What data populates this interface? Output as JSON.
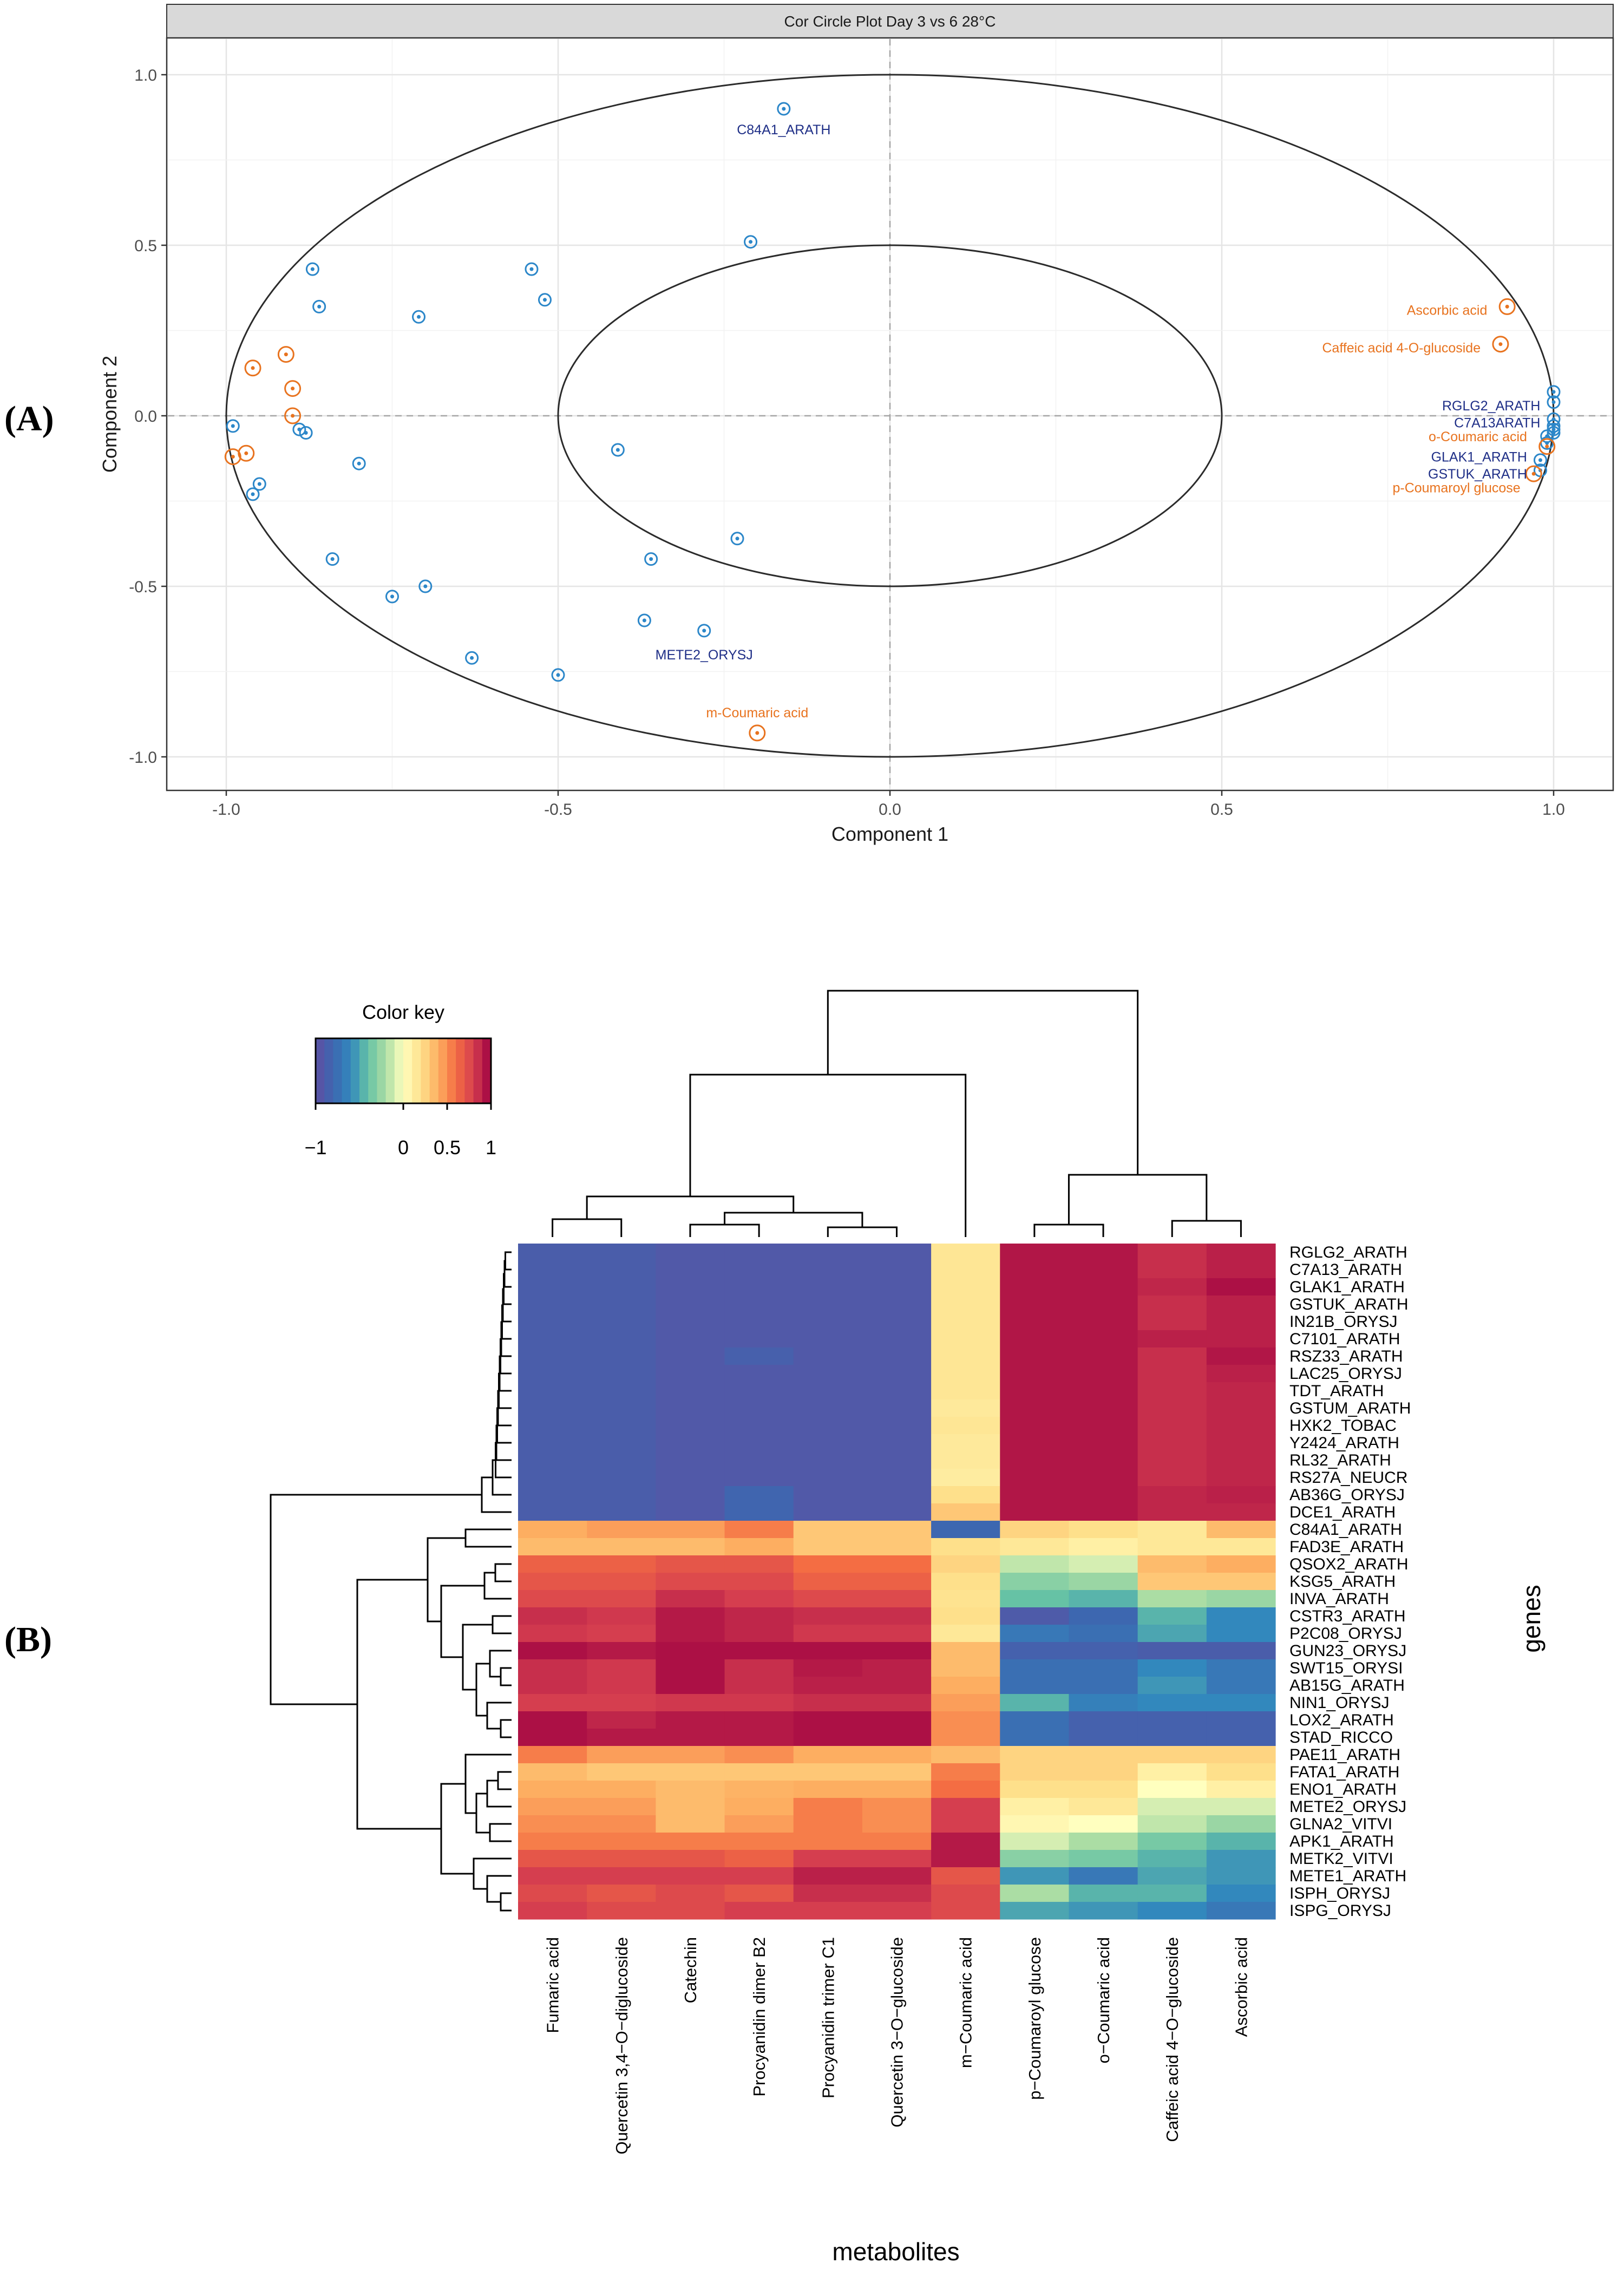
{
  "panels": {
    "a": "(A)",
    "b": "(B)"
  },
  "chart_data": [
    {
      "type": "scatter",
      "title": "Cor Circle Plot Day 3 vs 6 28°C",
      "xlabel": "Component  1",
      "ylabel": "Component  2",
      "xlim": [
        -1.0,
        1.0
      ],
      "ylim": [
        -1.0,
        1.0
      ],
      "xticks": [
        "-1.0",
        "-0.5",
        "0.0",
        "0.5",
        "1.0"
      ],
      "yticks": [
        "1.0",
        "0.5",
        "0.0",
        "-0.5",
        "-1.0"
      ],
      "circles": [
        1.0,
        0.5
      ],
      "grid": true,
      "colors": {
        "genes": "#2c87c9",
        "metabolites": "#e8731f",
        "gene_label": "#1f2f87",
        "metabolite_label": "#e8731f",
        "strip_bg": "#d9d9d9"
      },
      "series": [
        {
          "points": [
            [
              -0.16,
              0.9
            ],
            [
              -0.21,
              0.51
            ],
            [
              -0.54,
              0.43
            ],
            [
              -0.52,
              0.34
            ],
            [
              -0.87,
              0.43
            ],
            [
              -0.86,
              0.32
            ],
            [
              -0.71,
              0.29
            ],
            [
              -0.99,
              -0.03
            ],
            [
              -0.89,
              -0.04
            ],
            [
              -0.88,
              -0.05
            ],
            [
              -0.8,
              -0.14
            ],
            [
              -0.95,
              -0.2
            ],
            [
              -0.96,
              -0.23
            ],
            [
              -0.41,
              -0.1
            ],
            [
              -0.23,
              -0.36
            ],
            [
              -0.36,
              -0.42
            ],
            [
              -0.84,
              -0.42
            ],
            [
              -0.75,
              -0.53
            ],
            [
              -0.7,
              -0.5
            ],
            [
              -0.37,
              -0.6
            ],
            [
              -0.28,
              -0.63
            ],
            [
              -0.63,
              -0.71
            ],
            [
              -0.5,
              -0.76
            ],
            [
              1.0,
              0.07
            ],
            [
              1.0,
              0.04
            ],
            [
              1.0,
              -0.01
            ],
            [
              1.0,
              -0.03
            ],
            [
              1.0,
              -0.04
            ],
            [
              0.99,
              -0.06
            ],
            [
              0.99,
              -0.08
            ],
            [
              0.98,
              -0.13
            ],
            [
              0.98,
              -0.16
            ],
            [
              1.0,
              -0.05
            ]
          ]
        },
        {
          "points": [
            [
              0.93,
              0.32
            ],
            [
              0.92,
              0.21
            ],
            [
              0.99,
              -0.09
            ],
            [
              0.97,
              -0.17
            ],
            [
              -0.2,
              -0.93
            ],
            [
              -0.91,
              0.18
            ],
            [
              -0.96,
              0.14
            ],
            [
              -0.9,
              0.08
            ],
            [
              -0.9,
              0.0
            ],
            [
              -0.97,
              -0.11
            ],
            [
              -0.99,
              -0.12
            ]
          ]
        }
      ],
      "labels": [
        {
          "text": "C84A1_ARATH",
          "x": -0.16,
          "y": 0.84,
          "group": "gene",
          "anchor": "middle"
        },
        {
          "text": "METE2_ORYSJ",
          "x": -0.28,
          "y": -0.7,
          "group": "gene",
          "anchor": "middle"
        },
        {
          "text": "RGLG2_ARATH",
          "x": 0.98,
          "y": 0.03,
          "group": "gene",
          "anchor": "end"
        },
        {
          "text": "C7A13ARATH",
          "x": 0.98,
          "y": -0.02,
          "group": "gene",
          "anchor": "end"
        },
        {
          "text": "GLAK1_ARATH",
          "x": 0.96,
          "y": -0.12,
          "group": "gene",
          "anchor": "end"
        },
        {
          "text": "GSTUK_ARATH",
          "x": 0.96,
          "y": -0.17,
          "group": "gene",
          "anchor": "end"
        },
        {
          "text": "Ascorbic acid",
          "x": 0.9,
          "y": 0.31,
          "group": "metabolite",
          "anchor": "end"
        },
        {
          "text": "Caffeic acid 4-O-glucoside",
          "x": 0.89,
          "y": 0.2,
          "group": "metabolite",
          "anchor": "end"
        },
        {
          "text": "o-Coumaric acid",
          "x": 0.96,
          "y": -0.06,
          "group": "metabolite",
          "anchor": "end"
        },
        {
          "text": "p-Coumaroyl glucose",
          "x": 0.95,
          "y": -0.21,
          "group": "metabolite",
          "anchor": "end"
        },
        {
          "text": "m-Coumaric acid",
          "x": -0.2,
          "y": -0.87,
          "group": "metabolite",
          "anchor": "middle"
        }
      ]
    },
    {
      "type": "heatmap",
      "xlabel": "metabolites",
      "ylabel": "genes",
      "legend": {
        "title": "Color key",
        "ticks": [
          "−1",
          "0",
          "0.5",
          "1"
        ],
        "tick_values": [
          -1,
          0,
          0.5,
          1
        ],
        "range": [
          -1,
          1
        ]
      },
      "columns": [
        "Fumaric acid",
        "Quercetin 3,4−O−diglucoside",
        "Catechin",
        "Procyanidin dimer B2",
        "Procyanidin trimer C1",
        "Quercetin 3−O−glucoside",
        "m−Coumaric acid",
        "p−Coumaroyl glucose",
        "o−Coumaric acid",
        "Caffeic acid 4−O−glucoside",
        "Ascorbic acid"
      ],
      "rows": [
        "RGLG2_ARATH",
        "C7A13_ARATH",
        "GLAK1_ARATH",
        "GSTUK_ARATH",
        "IN21B_ORYSJ",
        "C7101_ARATH",
        "RSZ33_ARATH",
        "LAC25_ORYSJ",
        "TDT_ARATH",
        "GSTUM_ARATH",
        "HXK2_TOBAC",
        "Y2424_ARATH",
        "RL32_ARATH",
        "RS27A_NEUCR",
        "AB36G_ORYSJ",
        "DCE1_ARATH",
        "C84A1_ARATH",
        "FAD3E_ARATH",
        "QSOX2_ARATH",
        "KSG5_ARATH",
        "INVA_ARATH",
        "CSTR3_ARATH",
        "P2C08_ORYSJ",
        "GUN23_ORYSJ",
        "SWT15_ORYSI",
        "AB15G_ARATH",
        "NIN1_ORYSJ",
        "LOX2_ARATH",
        "STAD_RICCO",
        "PAE11_ARATH",
        "FATA1_ARATH",
        "ENO1_ARATH",
        "METE2_ORYSJ",
        "GLNA2_VITVI",
        "APK1_ARATH",
        "METK2_VITVI",
        "METE1_ARATH",
        "ISPH_ORYSJ",
        "ISPG_ORYSJ"
      ],
      "values": [
        [
          -0.88,
          -0.88,
          -0.92,
          -0.92,
          -0.92,
          -0.92,
          0.16,
          0.93,
          0.93,
          0.85,
          0.9
        ],
        [
          -0.88,
          -0.88,
          -0.92,
          -0.92,
          -0.92,
          -0.92,
          0.16,
          0.93,
          0.93,
          0.85,
          0.9
        ],
        [
          -0.88,
          -0.88,
          -0.92,
          -0.92,
          -0.92,
          -0.92,
          0.16,
          0.93,
          0.93,
          0.88,
          0.95
        ],
        [
          -0.88,
          -0.88,
          -0.92,
          -0.92,
          -0.92,
          -0.92,
          0.16,
          0.93,
          0.93,
          0.85,
          0.9
        ],
        [
          -0.88,
          -0.88,
          -0.92,
          -0.92,
          -0.92,
          -0.92,
          0.16,
          0.93,
          0.93,
          0.85,
          0.9
        ],
        [
          -0.88,
          -0.88,
          -0.92,
          -0.92,
          -0.92,
          -0.92,
          0.16,
          0.93,
          0.93,
          0.9,
          0.9
        ],
        [
          -0.88,
          -0.88,
          -0.92,
          -0.86,
          -0.92,
          -0.92,
          0.16,
          0.93,
          0.93,
          0.85,
          0.93
        ],
        [
          -0.88,
          -0.88,
          -0.92,
          -0.92,
          -0.92,
          -0.92,
          0.16,
          0.93,
          0.93,
          0.85,
          0.9
        ],
        [
          -0.88,
          -0.88,
          -0.92,
          -0.92,
          -0.92,
          -0.92,
          0.16,
          0.93,
          0.93,
          0.85,
          0.88
        ],
        [
          -0.88,
          -0.88,
          -0.92,
          -0.92,
          -0.92,
          -0.92,
          0.14,
          0.93,
          0.93,
          0.85,
          0.88
        ],
        [
          -0.88,
          -0.88,
          -0.92,
          -0.92,
          -0.92,
          -0.92,
          0.16,
          0.93,
          0.93,
          0.85,
          0.88
        ],
        [
          -0.88,
          -0.88,
          -0.92,
          -0.92,
          -0.92,
          -0.92,
          0.14,
          0.93,
          0.93,
          0.85,
          0.88
        ],
        [
          -0.88,
          -0.88,
          -0.92,
          -0.92,
          -0.92,
          -0.92,
          0.14,
          0.93,
          0.93,
          0.85,
          0.88
        ],
        [
          -0.88,
          -0.88,
          -0.92,
          -0.92,
          -0.92,
          -0.92,
          0.12,
          0.93,
          0.93,
          0.85,
          0.88
        ],
        [
          -0.88,
          -0.88,
          -0.92,
          -0.82,
          -0.92,
          -0.92,
          0.2,
          0.93,
          0.93,
          0.88,
          0.9
        ],
        [
          -0.88,
          -0.88,
          -0.92,
          -0.82,
          -0.92,
          -0.92,
          0.3,
          0.93,
          0.93,
          0.88,
          0.88
        ],
        [
          0.4,
          0.45,
          0.45,
          0.55,
          0.3,
          0.3,
          -0.8,
          0.25,
          0.2,
          0.15,
          0.35
        ],
        [
          0.35,
          0.35,
          0.35,
          0.4,
          0.3,
          0.3,
          0.2,
          0.15,
          0.1,
          0.15,
          0.15
        ],
        [
          0.65,
          0.65,
          0.7,
          0.7,
          0.6,
          0.6,
          0.25,
          -0.15,
          -0.1,
          0.35,
          0.4
        ],
        [
          0.7,
          0.7,
          0.75,
          0.75,
          0.65,
          0.65,
          0.2,
          -0.3,
          -0.25,
          0.3,
          0.3
        ],
        [
          0.75,
          0.75,
          0.85,
          0.8,
          0.75,
          0.75,
          0.18,
          -0.4,
          -0.45,
          -0.2,
          -0.25
        ],
        [
          0.85,
          0.82,
          0.92,
          0.88,
          0.85,
          0.85,
          0.2,
          -0.9,
          -0.8,
          -0.45,
          -0.6
        ],
        [
          0.82,
          0.8,
          0.92,
          0.88,
          0.82,
          0.82,
          0.15,
          -0.7,
          -0.75,
          -0.5,
          -0.6
        ],
        [
          0.95,
          0.92,
          0.95,
          0.95,
          0.95,
          0.95,
          0.35,
          -0.85,
          -0.85,
          -0.88,
          -0.88
        ],
        [
          0.85,
          0.82,
          0.95,
          0.85,
          0.92,
          0.9,
          0.35,
          -0.75,
          -0.75,
          -0.6,
          -0.7
        ],
        [
          0.85,
          0.82,
          0.95,
          0.85,
          0.9,
          0.9,
          0.4,
          -0.75,
          -0.75,
          -0.55,
          -0.7
        ],
        [
          0.8,
          0.8,
          0.82,
          0.82,
          0.85,
          0.85,
          0.45,
          -0.45,
          -0.65,
          -0.6,
          -0.6
        ],
        [
          0.95,
          0.88,
          0.92,
          0.92,
          0.95,
          0.95,
          0.5,
          -0.75,
          -0.85,
          -0.85,
          -0.85
        ],
        [
          0.95,
          0.92,
          0.92,
          0.92,
          0.95,
          0.95,
          0.5,
          -0.75,
          -0.85,
          -0.85,
          -0.85
        ],
        [
          0.55,
          0.45,
          0.45,
          0.5,
          0.4,
          0.4,
          0.35,
          0.25,
          0.25,
          0.25,
          0.25
        ],
        [
          0.35,
          0.3,
          0.3,
          0.3,
          0.3,
          0.3,
          0.55,
          0.25,
          0.25,
          0.1,
          0.2
        ],
        [
          0.4,
          0.4,
          0.35,
          0.38,
          0.4,
          0.4,
          0.6,
          0.2,
          0.2,
          0.0,
          0.1
        ],
        [
          0.45,
          0.45,
          0.35,
          0.4,
          0.55,
          0.5,
          0.8,
          0.1,
          0.15,
          -0.1,
          -0.1
        ],
        [
          0.5,
          0.5,
          0.35,
          0.45,
          0.55,
          0.5,
          0.8,
          0.05,
          0.0,
          -0.15,
          -0.25
        ],
        [
          0.55,
          0.55,
          0.55,
          0.55,
          0.55,
          0.55,
          0.92,
          -0.1,
          -0.2,
          -0.35,
          -0.45
        ],
        [
          0.7,
          0.7,
          0.7,
          0.65,
          0.8,
          0.8,
          0.92,
          -0.3,
          -0.35,
          -0.45,
          -0.55
        ],
        [
          0.8,
          0.8,
          0.8,
          0.8,
          0.9,
          0.9,
          0.7,
          -0.55,
          -0.7,
          -0.5,
          -0.55
        ],
        [
          0.75,
          0.7,
          0.75,
          0.7,
          0.85,
          0.85,
          0.75,
          -0.2,
          -0.45,
          -0.45,
          -0.6
        ],
        [
          0.8,
          0.75,
          0.75,
          0.8,
          0.8,
          0.8,
          0.75,
          -0.5,
          -0.55,
          -0.6,
          -0.7
        ]
      ]
    }
  ]
}
